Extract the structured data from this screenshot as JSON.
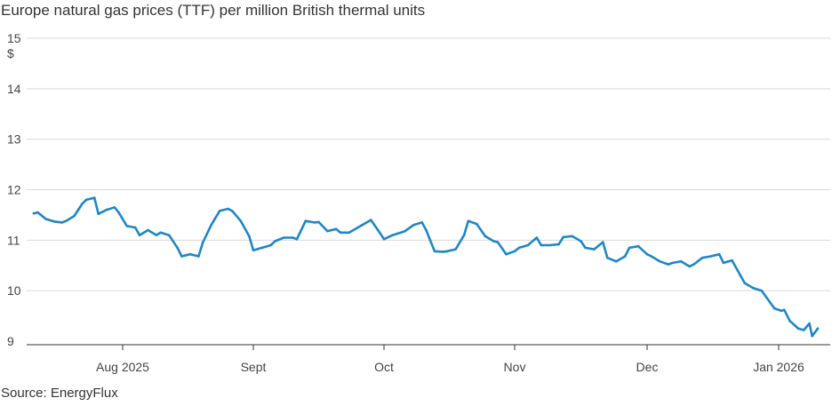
{
  "chart_data": {
    "type": "line",
    "title": "Europe natural gas prices (TTF) per million British thermal units",
    "unit_label": "$",
    "source": "Source: EnergyFlux",
    "ylim": [
      9,
      15
    ],
    "yticks": [
      9,
      10,
      11,
      12,
      13,
      14,
      15
    ],
    "x_tick_labels": [
      {
        "label": "Aug 2025",
        "date": "2025-08-01"
      },
      {
        "label": "Sept",
        "date": "2025-09-01"
      },
      {
        "label": "Oct",
        "date": "2025-10-01"
      },
      {
        "label": "Nov",
        "date": "2025-11-01"
      },
      {
        "label": "Dec",
        "date": "2025-12-01"
      },
      {
        "label": "Jan 2026",
        "date": "2026-01-01"
      }
    ],
    "grid": true,
    "line_color": "#1f87c7",
    "series": [
      {
        "x": [
          "2025-07-10",
          "2025-07-11",
          "2025-07-13",
          "2025-07-15",
          "2025-07-17",
          "2025-07-18",
          "2025-07-20",
          "2025-07-22",
          "2025-07-23",
          "2025-07-25",
          "2025-07-26",
          "2025-07-28",
          "2025-07-30",
          "2025-07-31",
          "2025-08-02",
          "2025-08-04",
          "2025-08-05",
          "2025-08-07",
          "2025-08-09",
          "2025-08-10",
          "2025-08-12",
          "2025-08-14",
          "2025-08-15",
          "2025-08-17",
          "2025-08-19",
          "2025-08-20",
          "2025-08-22",
          "2025-08-24",
          "2025-08-26",
          "2025-08-27",
          "2025-08-29",
          "2025-08-31",
          "2025-09-01",
          "2025-09-03",
          "2025-09-05",
          "2025-09-06",
          "2025-09-08",
          "2025-09-10",
          "2025-09-11",
          "2025-09-13",
          "2025-09-15",
          "2025-09-16",
          "2025-09-18",
          "2025-09-20",
          "2025-09-21",
          "2025-09-23",
          "2025-09-25",
          "2025-09-26",
          "2025-09-28",
          "2025-09-30",
          "2025-10-01",
          "2025-10-03",
          "2025-10-05",
          "2025-10-06",
          "2025-10-08",
          "2025-10-10",
          "2025-10-11",
          "2025-10-13",
          "2025-10-15",
          "2025-10-16",
          "2025-10-18",
          "2025-10-20",
          "2025-10-21",
          "2025-10-23",
          "2025-10-25",
          "2025-10-27",
          "2025-10-28",
          "2025-10-30",
          "2025-11-01",
          "2025-11-02",
          "2025-11-04",
          "2025-11-06",
          "2025-11-07",
          "2025-11-09",
          "2025-11-11",
          "2025-11-12",
          "2025-11-14",
          "2025-11-16",
          "2025-11-17",
          "2025-11-19",
          "2025-11-21",
          "2025-11-22",
          "2025-11-24",
          "2025-11-26",
          "2025-11-27",
          "2025-11-29",
          "2025-12-01",
          "2025-12-02",
          "2025-12-04",
          "2025-12-06",
          "2025-12-07",
          "2025-12-09",
          "2025-12-11",
          "2025-12-12",
          "2025-12-14",
          "2025-12-16",
          "2025-12-18",
          "2025-12-19",
          "2025-12-21",
          "2025-12-23",
          "2025-12-24",
          "2025-12-26",
          "2025-12-28",
          "2025-12-29",
          "2025-12-31",
          "2026-01-02",
          "2026-01-03",
          "2026-01-05",
          "2026-01-07",
          "2026-01-08",
          "2026-01-10",
          "2026-01-12",
          "2026-01-13",
          "2026-01-15"
        ],
        "values": [
          11.53,
          11.55,
          11.42,
          11.37,
          11.35,
          11.38,
          11.48,
          11.72,
          11.8,
          11.84,
          11.52,
          11.6,
          11.65,
          11.55,
          11.28,
          11.25,
          11.1,
          11.2,
          11.1,
          11.15,
          11.1,
          10.85,
          10.68,
          10.72,
          10.68,
          10.95,
          11.3,
          11.58,
          11.62,
          11.58,
          11.38,
          11.08,
          10.8,
          10.85,
          10.9,
          10.98,
          11.05,
          11.05,
          11.02,
          11.38,
          11.35,
          11.36,
          11.18,
          11.22,
          11.15,
          11.15,
          11.25,
          11.3,
          11.4,
          11.15,
          11.02,
          11.1,
          11.15,
          11.18,
          11.3,
          11.35,
          11.2,
          10.78,
          10.77,
          10.78,
          10.82,
          11.1,
          11.38,
          11.32,
          11.08,
          10.98,
          10.96,
          10.72,
          10.78,
          10.85,
          10.9,
          11.05,
          10.9,
          10.9,
          10.92,
          11.06,
          11.08,
          10.98,
          10.85,
          10.82,
          10.96,
          10.65,
          10.58,
          10.68,
          10.85,
          10.88,
          10.72,
          10.68,
          10.58,
          10.52,
          10.55,
          10.58,
          10.48,
          10.52,
          10.65,
          10.68,
          10.72,
          10.55,
          10.6,
          10.3,
          10.15,
          10.05,
          10.0,
          9.88,
          9.65,
          9.6,
          9.62,
          9.4,
          9.3,
          9.25,
          9.22,
          9.35,
          9.1,
          9.25
        ]
      }
    ]
  }
}
